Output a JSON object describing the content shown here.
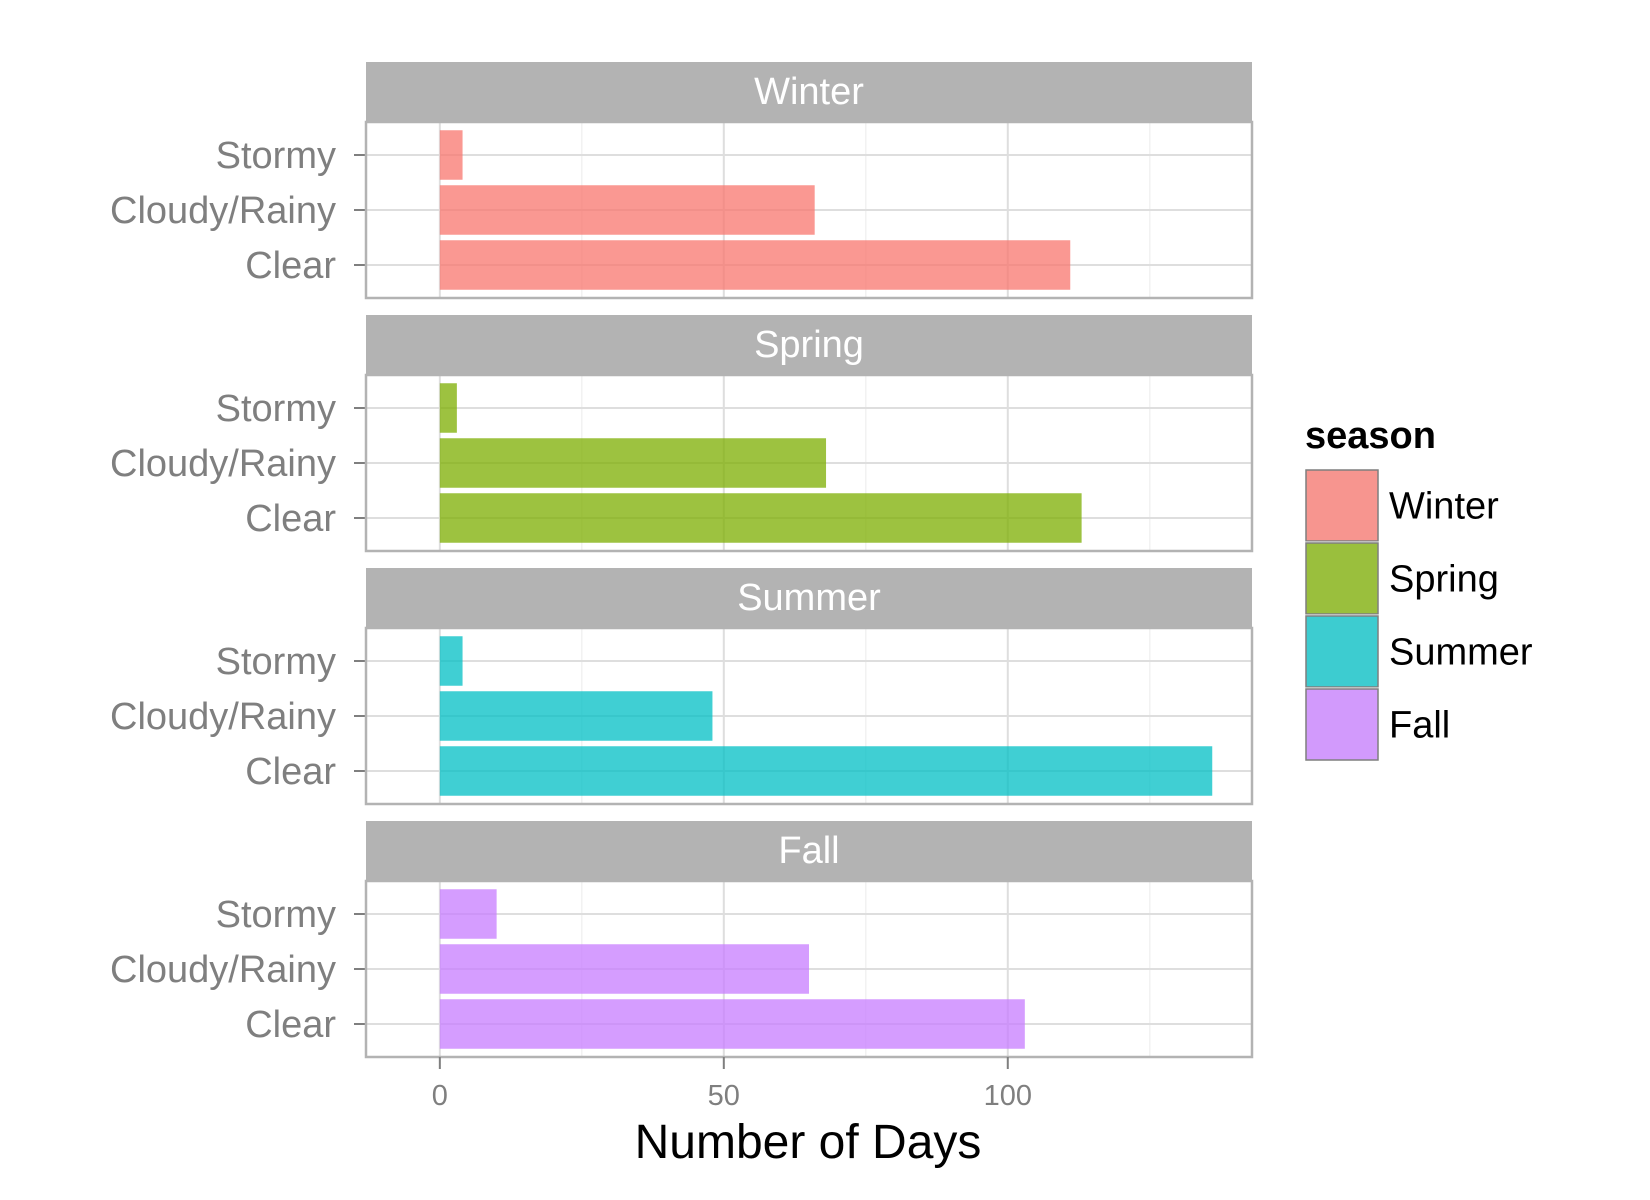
{
  "chart_data": {
    "type": "bar",
    "orientation": "horizontal",
    "facet_by": "season",
    "categories": [
      "Stormy",
      "Cloudy/Rainy",
      "Clear"
    ],
    "xlabel": "Number of Days",
    "ylabel": "",
    "xlim": [
      -13,
      143
    ],
    "x_ticks": [
      0,
      50,
      100
    ],
    "grid": true,
    "legend": {
      "title": "season",
      "placement": "right",
      "entries": [
        "Winter",
        "Spring",
        "Summer",
        "Fall"
      ]
    },
    "series": [
      {
        "name": "Winter",
        "color": "#F8766D",
        "values": [
          4,
          66,
          111
        ]
      },
      {
        "name": "Spring",
        "color": "#7CAE00",
        "values": [
          3,
          68,
          113
        ]
      },
      {
        "name": "Summer",
        "color": "#00BFC4",
        "values": [
          4,
          48,
          136
        ]
      },
      {
        "name": "Fall",
        "color": "#C77CFF",
        "values": [
          10,
          65,
          103
        ]
      }
    ]
  }
}
